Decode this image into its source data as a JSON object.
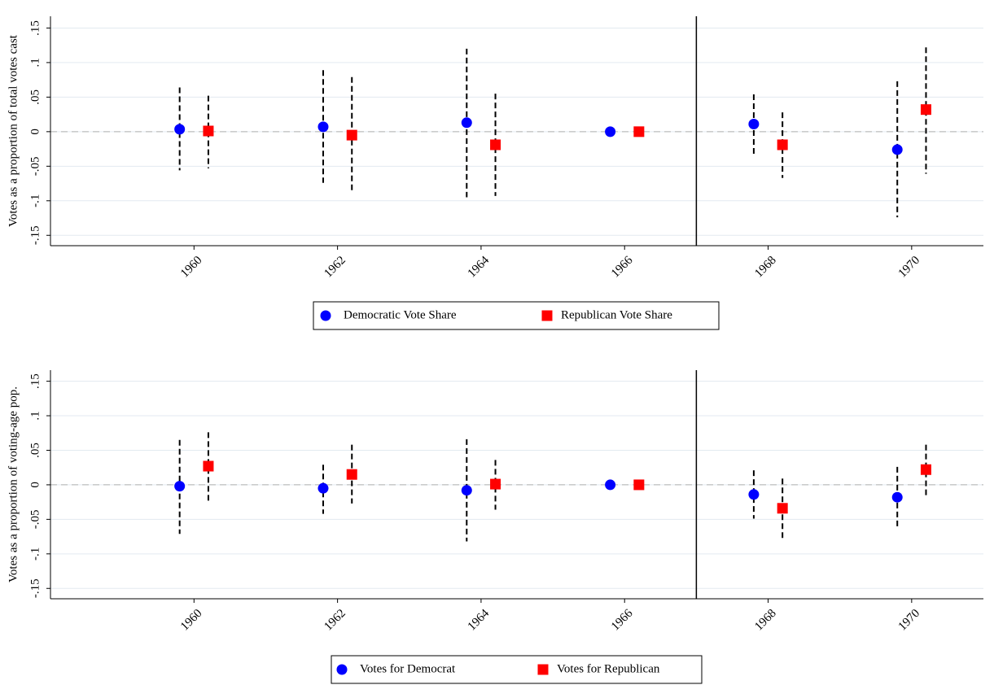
{
  "chart_data": [
    {
      "type": "scatter",
      "y_label": "Votes as a proportion of total votes cast",
      "xlim": [
        1958,
        1971
      ],
      "xticks": [
        1960,
        1962,
        1964,
        1966,
        1968,
        1970
      ],
      "ylim": [
        -0.165,
        0.167
      ],
      "yticks": [
        {
          "value": -0.15,
          "label": "-.15"
        },
        {
          "value": -0.1,
          "label": "-.1"
        },
        {
          "value": -0.05,
          "label": "-.05"
        },
        0,
        {
          "value": 0.05,
          "label": ".05"
        },
        {
          "value": 0.1,
          "label": ".1"
        },
        {
          "value": 0.15,
          "label": ".15"
        }
      ],
      "grid": true,
      "hline": 0,
      "vline": 1967,
      "legend": "bottom",
      "series": [
        {
          "name": "Democratic Vote Share",
          "color": "#0000ff",
          "marker": "circle",
          "x": [
            1959.8,
            1961.8,
            1963.8,
            1965.8,
            1967.8,
            1969.8
          ],
          "values": [
            0.0035,
            0.007,
            0.013,
            0,
            0.011,
            -0.026
          ],
          "high": [
            0.064,
            0.089,
            0.12,
            null,
            0.054,
            0.073
          ],
          "low": [
            -0.056,
            -0.074,
            -0.095,
            null,
            -0.034,
            -0.124
          ]
        },
        {
          "name": "Republican Vote Share",
          "color": "#ff0000",
          "marker": "square",
          "x": [
            1960.2,
            1962.2,
            1964.2,
            1966.2,
            1968.2,
            1970.2
          ],
          "values": [
            0.001,
            -0.005,
            -0.019,
            0,
            -0.019,
            0.032
          ],
          "high": [
            0.052,
            0.079,
            0.055,
            null,
            0.028,
            0.122
          ],
          "low": [
            -0.053,
            -0.089,
            -0.093,
            null,
            -0.067,
            -0.061
          ]
        }
      ]
    },
    {
      "type": "scatter",
      "y_label": "Votes as a proportion of voting-age pop.",
      "xlim": [
        1958,
        1971
      ],
      "xticks": [
        1960,
        1962,
        1964,
        1966,
        1968,
        1970
      ],
      "ylim": [
        -0.165,
        0.166
      ],
      "yticks": [
        {
          "value": -0.15,
          "label": "-.15"
        },
        {
          "value": -0.1,
          "label": "-.1"
        },
        {
          "value": -0.05,
          "label": "-.05"
        },
        0,
        {
          "value": 0.05,
          "label": ".05"
        },
        {
          "value": 0.1,
          "label": ".1"
        },
        {
          "value": 0.15,
          "label": ".15"
        }
      ],
      "grid": true,
      "hline": 0,
      "vline": 1967,
      "legend": "bottom",
      "series": [
        {
          "name": "Votes for Democrat",
          "color": "#0000ff",
          "marker": "circle",
          "x": [
            1959.8,
            1961.8,
            1963.8,
            1965.8,
            1967.8,
            1969.8
          ],
          "values": [
            -0.002,
            -0.005,
            -0.008,
            0,
            -0.014,
            -0.018
          ],
          "high": [
            0.065,
            0.029,
            0.066,
            null,
            0.021,
            0.026
          ],
          "low": [
            -0.071,
            -0.042,
            -0.082,
            null,
            -0.049,
            -0.061
          ]
        },
        {
          "name": "Votes for Republican",
          "color": "#ff0000",
          "marker": "square",
          "x": [
            1960.2,
            1962.2,
            1964.2,
            1966.2,
            1968.2,
            1970.2
          ],
          "values": [
            0.027,
            0.015,
            0.001,
            0,
            -0.034,
            0.022
          ],
          "high": [
            0.076,
            0.058,
            0.036,
            null,
            0.009,
            0.058
          ],
          "low": [
            -0.024,
            -0.027,
            -0.036,
            null,
            -0.079,
            -0.019
          ]
        }
      ]
    }
  ]
}
